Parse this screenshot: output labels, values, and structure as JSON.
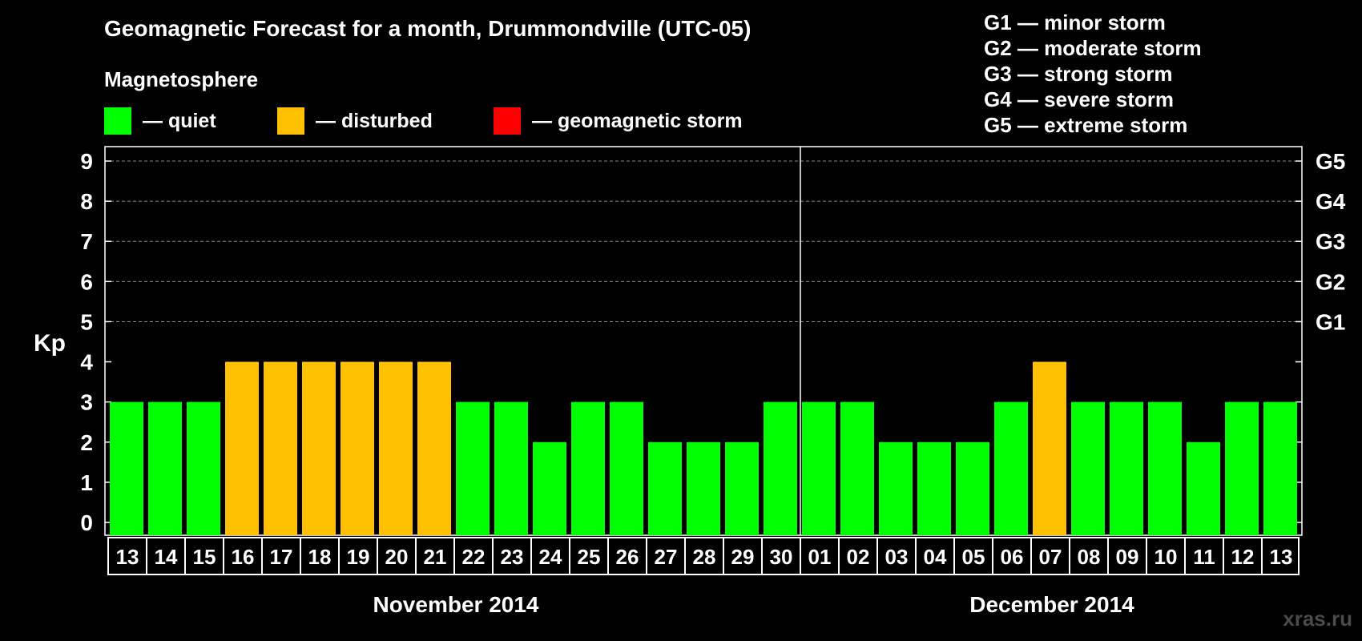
{
  "title": "Geomagnetic Forecast for a month, Drummondville (UTC-05)",
  "legend": {
    "heading": "Magnetosphere",
    "items": [
      {
        "label": "— quiet",
        "color": "#00ff00"
      },
      {
        "label": "— disturbed",
        "color": "#ffc000"
      },
      {
        "label": "— geomagnetic storm",
        "color": "#ff0000"
      }
    ]
  },
  "storm_scale": [
    "G1 — minor storm",
    "G2 — moderate storm",
    "G3 — strong storm",
    "G4 — severe storm",
    "G5 — extreme storm"
  ],
  "watermark": "xras.ru",
  "chart_data": {
    "type": "bar",
    "ylabel": "Kp",
    "ylim": [
      0,
      9
    ],
    "yticks": [
      0,
      1,
      2,
      3,
      4,
      5,
      6,
      7,
      8,
      9
    ],
    "right_axis": [
      {
        "level": 5,
        "label": "G1"
      },
      {
        "level": 6,
        "label": "G2"
      },
      {
        "level": 7,
        "label": "G3"
      },
      {
        "level": 8,
        "label": "G4"
      },
      {
        "level": 9,
        "label": "G5"
      }
    ],
    "categories": [
      "13",
      "14",
      "15",
      "16",
      "17",
      "18",
      "19",
      "20",
      "21",
      "22",
      "23",
      "24",
      "25",
      "26",
      "27",
      "28",
      "29",
      "30",
      "01",
      "02",
      "03",
      "04",
      "05",
      "06",
      "07",
      "08",
      "09",
      "10",
      "11",
      "12",
      "13"
    ],
    "values": [
      3,
      3,
      3,
      4,
      4,
      4,
      4,
      4,
      4,
      3,
      3,
      2,
      3,
      3,
      2,
      2,
      2,
      3,
      3,
      3,
      2,
      2,
      2,
      3,
      4,
      3,
      3,
      3,
      2,
      3,
      3
    ],
    "status": [
      "quiet",
      "quiet",
      "quiet",
      "disturbed",
      "disturbed",
      "disturbed",
      "disturbed",
      "disturbed",
      "disturbed",
      "quiet",
      "quiet",
      "quiet",
      "quiet",
      "quiet",
      "quiet",
      "quiet",
      "quiet",
      "quiet",
      "quiet",
      "quiet",
      "quiet",
      "quiet",
      "quiet",
      "quiet",
      "disturbed",
      "quiet",
      "quiet",
      "quiet",
      "quiet",
      "quiet",
      "quiet"
    ],
    "status_colors": {
      "quiet": "#00ff00",
      "disturbed": "#ffc000",
      "storm": "#ff0000"
    },
    "months": [
      {
        "label": "November 2014",
        "first_index": 0,
        "last_index": 17
      },
      {
        "label": "December 2014",
        "first_index": 18,
        "last_index": 30
      }
    ],
    "divider_after_index": 17,
    "grid": true
  }
}
